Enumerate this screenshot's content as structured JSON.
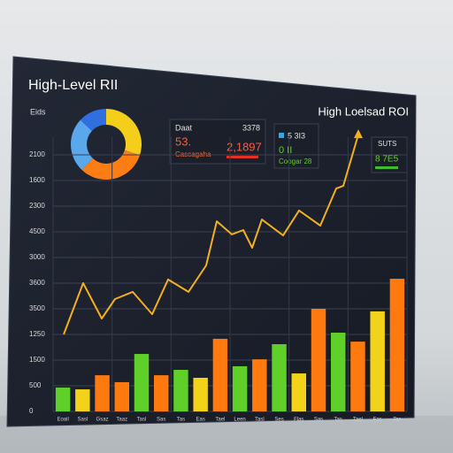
{
  "header": {
    "title_left": "High-Level RII",
    "title_right": "High Loelsad ROI"
  },
  "kpis": [
    {
      "label": "Daat",
      "value": "3378",
      "big": "53.",
      "big2": "2,1897",
      "sub": "Cascagaha"
    },
    {
      "label": "5 3I3",
      "big": "0 II",
      "sub": "Coogar 28"
    },
    {
      "label": "SUTS",
      "big": "8 7E5"
    }
  ],
  "chart_data": [
    {
      "type": "pie",
      "values": [
        30,
        32,
        25,
        13
      ],
      "colors": [
        "#f3cf1c",
        "#fb7d14",
        "#5aa8ec",
        "#2f6fe0"
      ]
    },
    {
      "type": "bar",
      "y_axis_title": "Eids",
      "y_axis_labels": [
        "2100",
        "1600",
        "2300",
        "4500",
        "3000",
        "3600",
        "3500",
        "1250",
        "1500",
        "500",
        "0"
      ],
      "categories": [
        "Eoail",
        "Sasl",
        "Gsaz",
        "Taaz",
        "Tasl",
        "Sas",
        "Tas",
        "Eas",
        "Tael",
        "Leen",
        "Tasl",
        "Ses",
        "Flas",
        "Sas",
        "Tas",
        "Tael",
        "Fas",
        "Tas"
      ],
      "values": [
        9.3,
        8.6,
        14.1,
        11.4,
        22.4,
        14.1,
        16.2,
        13.1,
        28.3,
        17.6,
        20.3,
        26.2,
        14.8,
        40,
        30.7,
        27.2,
        39,
        51.7
      ],
      "colors": [
        "#5fd02a",
        "#f3d21a",
        "#ff7a0e",
        "#ff7a0e",
        "#5fd02a",
        "#ff7a0e",
        "#5fd02a",
        "#f3d21a",
        "#ff7a0e",
        "#5fd02a",
        "#ff7a0e",
        "#5fd02a",
        "#f3d21a",
        "#ff7a0e",
        "#5fd02a",
        "#ff7a0e",
        "#f3d21a",
        "#ff7a0e"
      ],
      "ylim": [
        0,
        100
      ],
      "grid": true
    },
    {
      "type": "line",
      "x": [
        3,
        8.5,
        13.75,
        17.5,
        22.5,
        28,
        32.5,
        38.25,
        43.25,
        46.25,
        50.5,
        53.75,
        56.25,
        59,
        65,
        69.5,
        75.5,
        80,
        82,
        86.25
      ],
      "values": [
        30,
        50,
        36.2,
        43.8,
        46.6,
        37.9,
        51.4,
        46.6,
        56.9,
        74.1,
        69,
        70.7,
        63.8,
        74.8,
        68.6,
        78.3,
        72.4,
        86.9,
        87.9,
        107.9
      ],
      "color": "#f2b01e",
      "xlim": [
        0,
        100
      ],
      "ylim": [
        0,
        100
      ]
    }
  ]
}
